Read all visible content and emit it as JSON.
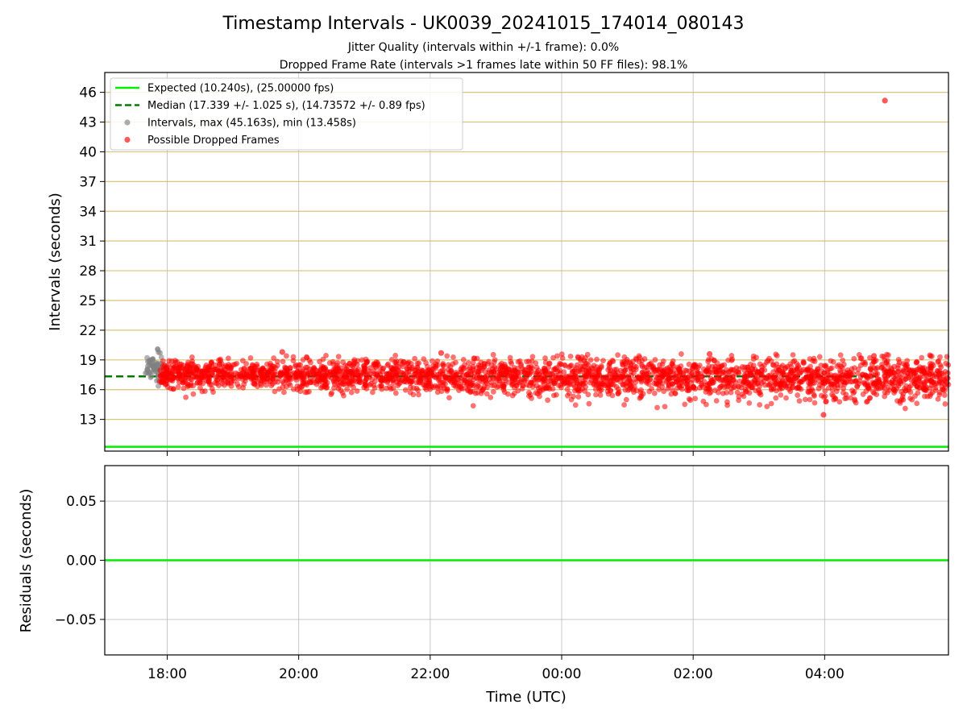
{
  "chart_data": [
    {
      "type": "scatter",
      "title": "Timestamp Intervals - UK0039_20241015_174014_080143",
      "subtitles": [
        "Jitter Quality (intervals within +/-1 frame): 0.0%",
        "Dropped Frame Rate (intervals >1 frames late within 50 FF files): 98.1%"
      ],
      "xlabel": "",
      "ylabel": "Intervals (seconds)",
      "x_axis_type": "time_utc_hours",
      "xlim": [
        "2024-10-15 17:03",
        "2024-10-16 05:53"
      ],
      "ylim": [
        9.8,
        48.0
      ],
      "yticks": [
        13,
        16,
        19,
        22,
        25,
        28,
        31,
        34,
        37,
        40,
        43,
        46
      ],
      "ygrid_color": "#d2b55b",
      "xgrid": true,
      "legend_position": "upper-left",
      "legend": [
        {
          "label": "Expected (10.240s), (25.00000 fps)",
          "kind": "line",
          "color": "#00ee00",
          "dash": "solid"
        },
        {
          "label": "Median (17.339 +/- 1.025 s), (14.73572 +/- 0.89 fps)",
          "kind": "line",
          "color": "#007a00",
          "dash": "dashed"
        },
        {
          "label": "Intervals, max (45.163s), min (13.458s)",
          "kind": "point",
          "color": "#808080"
        },
        {
          "label": "Possible Dropped Frames",
          "kind": "point",
          "color": "#ff0000"
        }
      ],
      "series": [
        {
          "name": "Expected (10.240s), (25.00000 fps)",
          "kind": "hline",
          "y": 10.24,
          "color": "#00ee00"
        },
        {
          "name": "Median (17.339 +/- 1.025 s), (14.73572 +/- 0.89 fps)",
          "kind": "hline-dashed",
          "y": 17.339,
          "color": "#007a00",
          "x_range": [
            "2024-10-15 17:03",
            "2024-10-16 04:47"
          ]
        },
        {
          "name": "Intervals, max (45.163s), min (13.458s)",
          "kind": "scatter",
          "color": "#808080",
          "x_range": [
            "2024-10-15 17:40",
            "2024-10-15 17:57"
          ],
          "y_center": 18.2,
          "y_spread": 1.0,
          "count": 60,
          "max": 45.163,
          "min": 13.458
        },
        {
          "name": "Possible Dropped Frames",
          "kind": "scatter",
          "color": "#ff0000",
          "x_range": [
            "2024-10-15 17:53",
            "2024-10-16 05:53"
          ],
          "y_center": 17.2,
          "y_spread": 0.9,
          "count": 2800,
          "outliers": [
            {
              "x": "2024-10-16 04:55",
              "y": 45.163
            },
            {
              "x": "2024-10-16 03:59",
              "y": 13.458
            },
            {
              "x": "2024-10-15 19:45",
              "y": 19.8
            },
            {
              "x": "2024-10-15 22:10",
              "y": 19.7
            },
            {
              "x": "2024-10-16 02:15",
              "y": 19.6
            },
            {
              "x": "2024-10-16 04:45",
              "y": 19.4
            }
          ]
        }
      ]
    },
    {
      "type": "line",
      "xlabel": "Time (UTC)",
      "ylabel": "Residuals (seconds)",
      "x_axis_type": "time_utc_hours",
      "xlim": [
        "2024-10-15 17:03",
        "2024-10-16 05:53"
      ],
      "ylim": [
        -0.08,
        0.08
      ],
      "yticks": [
        -0.05,
        0.0,
        0.05
      ],
      "ytick_labels": [
        "−0.05",
        "0.00",
        "0.05"
      ],
      "xticks": [
        "18:00",
        "20:00",
        "22:00",
        "00:00",
        "02:00",
        "04:00"
      ],
      "grid": true,
      "series": [
        {
          "name": "",
          "kind": "hline",
          "y": 0.0,
          "color": "#00ee00"
        }
      ]
    }
  ]
}
